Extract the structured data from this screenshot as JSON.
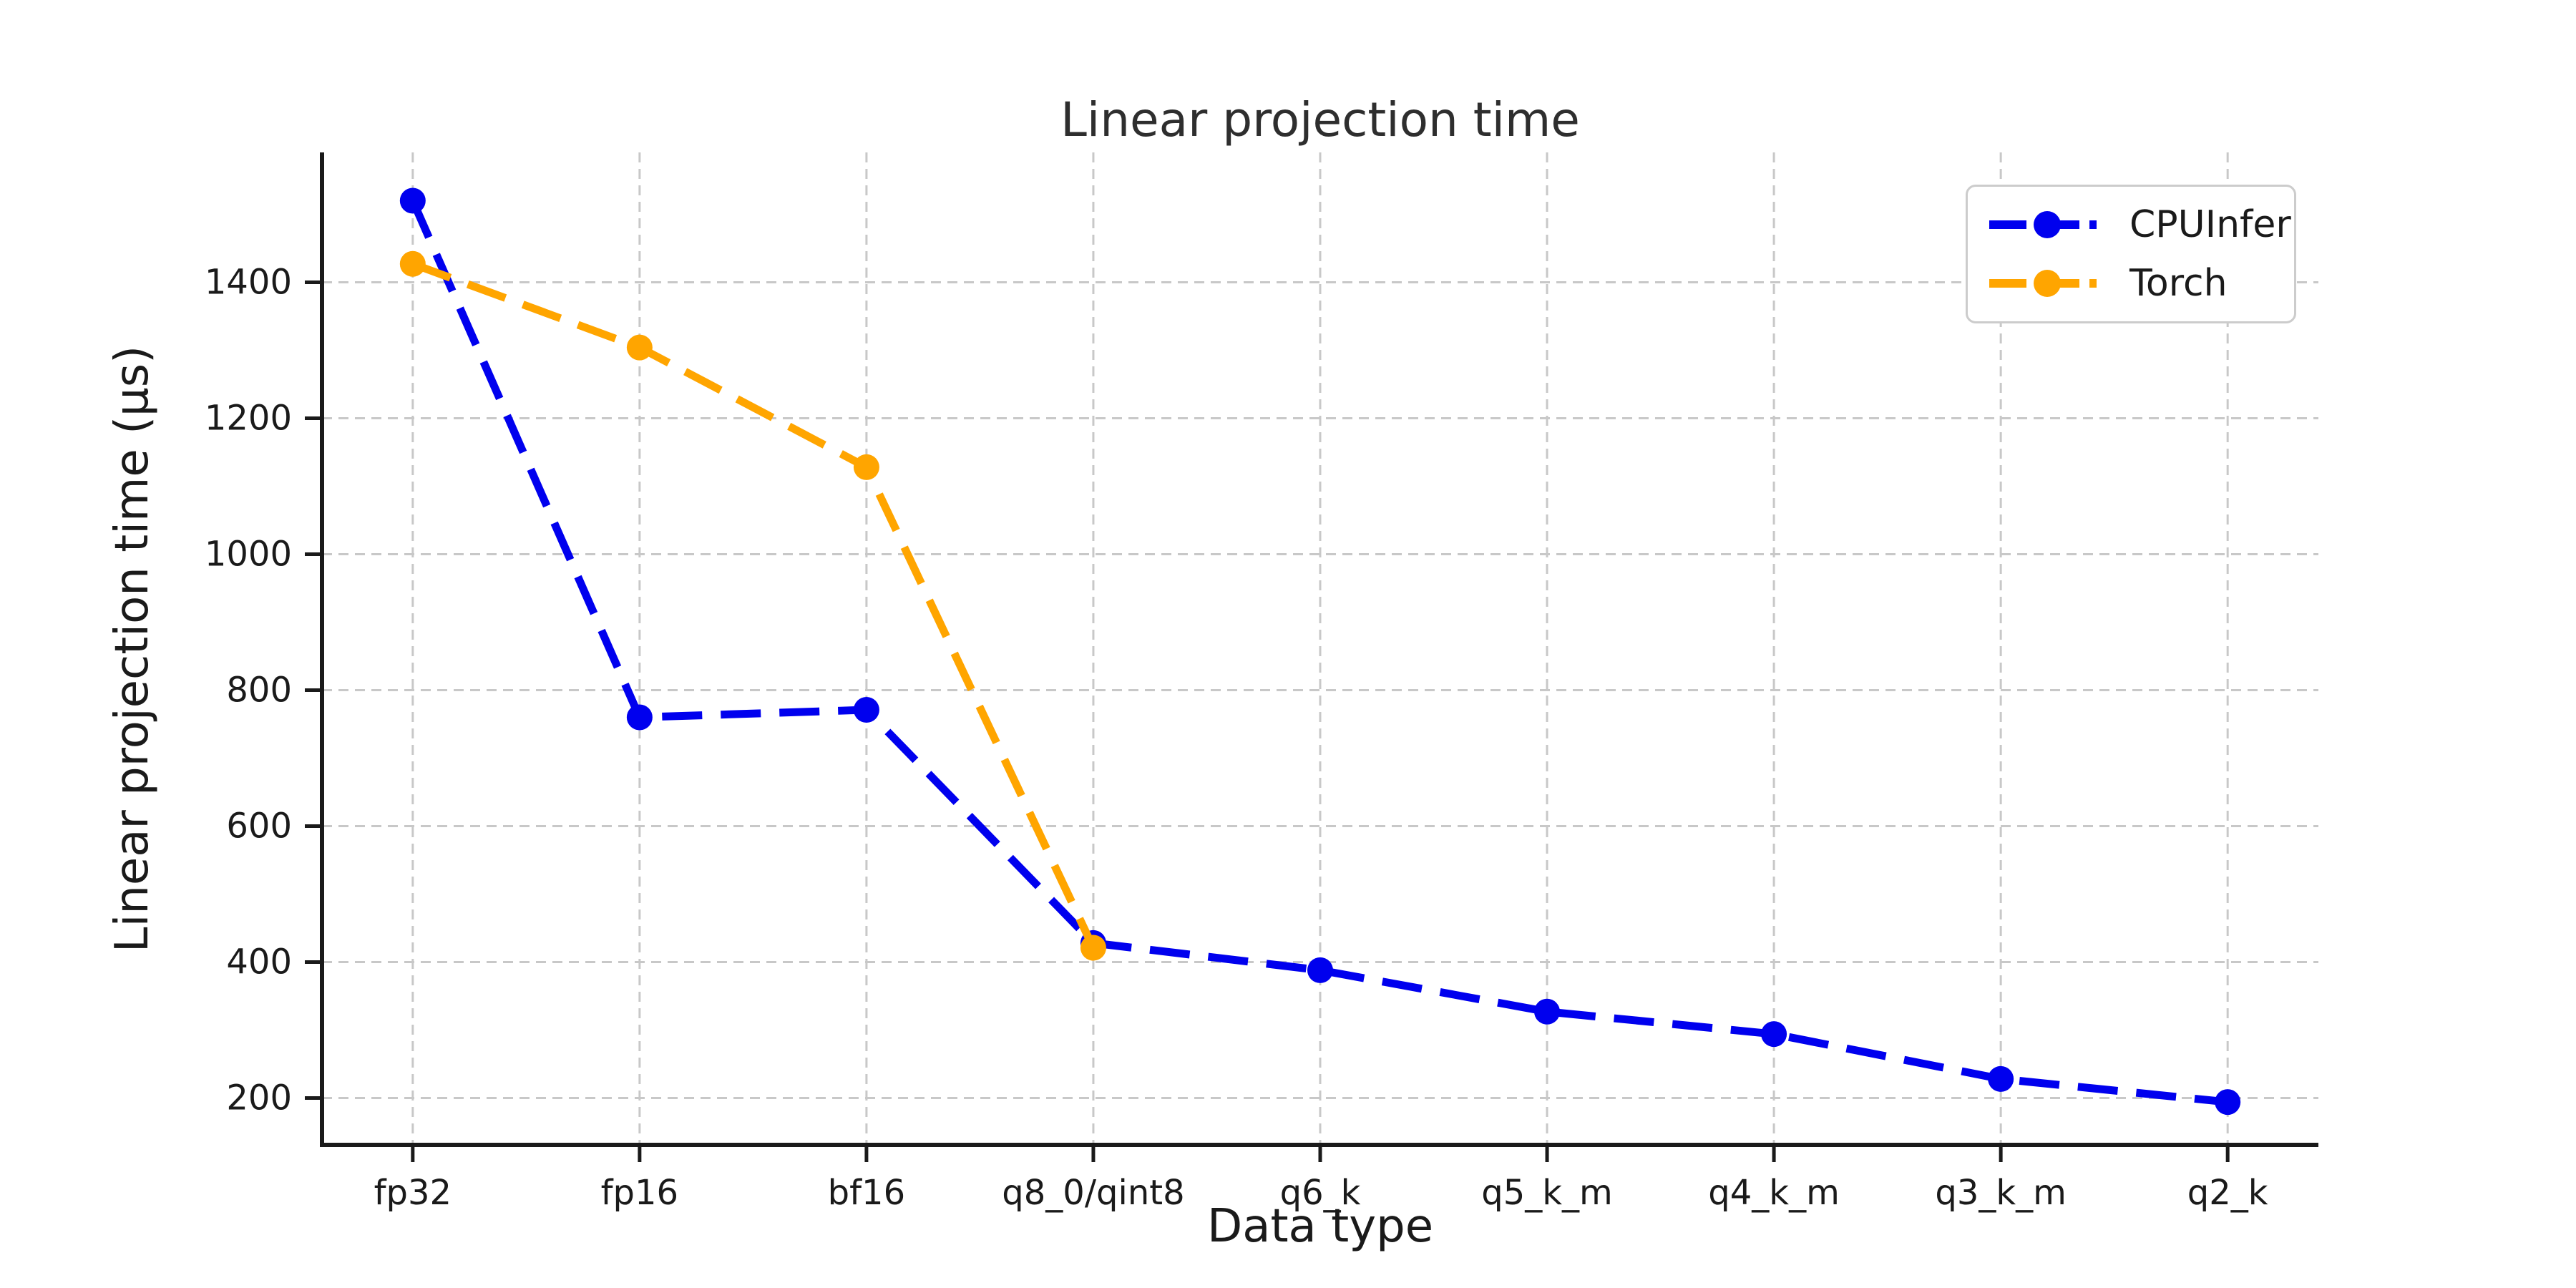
{
  "chart_data": {
    "type": "line",
    "title": "Linear projection time",
    "xlabel": "Data type",
    "ylabel": "Linear projection time (µs)",
    "categories": [
      "fp32",
      "fp16",
      "bf16",
      "q8_0/qint8",
      "q6_k",
      "q5_k_m",
      "q4_k_m",
      "q3_k_m",
      "q2_k"
    ],
    "series": [
      {
        "name": "CPUInfer",
        "color": "#0000ee",
        "line_style": "dashed",
        "marker": "circle",
        "values": [
          1520,
          760,
          771,
          428,
          388,
          327,
          294,
          228,
          194
        ]
      },
      {
        "name": "Torch",
        "color": "#ffa500",
        "line_style": "dashed",
        "marker": "circle",
        "values": [
          1427,
          1304,
          1128,
          421
        ]
      }
    ],
    "ylim": [
      131,
      1591
    ],
    "yticks": [
      200,
      400,
      600,
      800,
      1000,
      1200,
      1400
    ],
    "grid": true,
    "grid_style": "dashed",
    "legend_position": "upper right"
  },
  "style_colors": {
    "grid": "#c8c8c8",
    "spine": "#1a1a1a",
    "tick_text": "#1a1a1a"
  }
}
